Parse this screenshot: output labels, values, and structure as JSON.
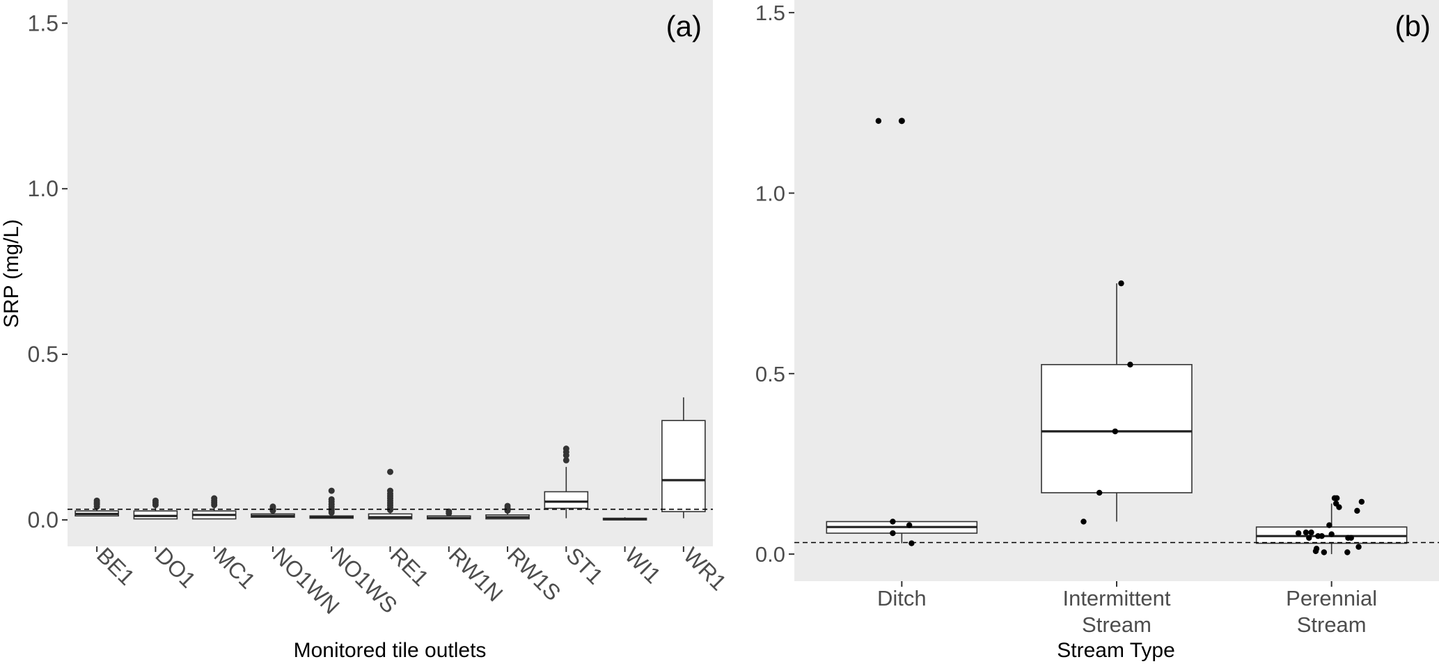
{
  "chart_data": [
    {
      "type": "box",
      "panel_label": "(a)",
      "xlabel": "Monitored tile outlets",
      "ylabel": "SRP (mg/L)",
      "ylim": [
        -0.08,
        1.57
      ],
      "yticks": [
        0.0,
        0.5,
        1.0,
        1.5
      ],
      "ytick_labels": [
        "0.0",
        "0.5",
        "1.0",
        "1.5"
      ],
      "reference_line": 0.032,
      "grid": false,
      "categories": [
        "BE1",
        "DO1",
        "MC1",
        "NO1WN",
        "NO1WS",
        "RE1",
        "RW1N",
        "RW1S",
        "ST1",
        "WI1",
        "WR1"
      ],
      "boxes": [
        {
          "min": 0.012,
          "q1": 0.012,
          "median": 0.018,
          "q3": 0.027,
          "max": 0.035,
          "outliers": [
            0.04,
            0.047,
            0.052,
            0.058
          ]
        },
        {
          "min": 0.003,
          "q1": 0.003,
          "median": 0.012,
          "q3": 0.027,
          "max": 0.038,
          "outliers": [
            0.045,
            0.052,
            0.058
          ]
        },
        {
          "min": 0.003,
          "q1": 0.003,
          "median": 0.015,
          "q3": 0.027,
          "max": 0.038,
          "outliers": [
            0.045,
            0.052,
            0.058,
            0.065
          ]
        },
        {
          "min": 0.008,
          "q1": 0.008,
          "median": 0.012,
          "q3": 0.018,
          "max": 0.025,
          "outliers": [
            0.028,
            0.035,
            0.04
          ]
        },
        {
          "min": 0.005,
          "q1": 0.005,
          "median": 0.008,
          "q3": 0.012,
          "max": 0.018,
          "outliers": [
            0.022,
            0.027,
            0.033,
            0.04,
            0.047,
            0.055,
            0.062,
            0.088
          ]
        },
        {
          "min": 0.003,
          "q1": 0.003,
          "median": 0.008,
          "q3": 0.018,
          "max": 0.028,
          "outliers": [
            0.03,
            0.037,
            0.044,
            0.051,
            0.058,
            0.065,
            0.072,
            0.079,
            0.088,
            0.145
          ]
        },
        {
          "min": 0.003,
          "q1": 0.003,
          "median": 0.006,
          "q3": 0.012,
          "max": 0.018,
          "outliers": [
            0.02,
            0.025
          ]
        },
        {
          "min": 0.003,
          "q1": 0.003,
          "median": 0.008,
          "q3": 0.015,
          "max": 0.022,
          "outliers": [
            0.028,
            0.035,
            0.042
          ]
        },
        {
          "min": 0.005,
          "q1": 0.035,
          "median": 0.055,
          "q3": 0.085,
          "max": 0.16,
          "outliers": [
            0.18,
            0.195,
            0.205,
            0.215
          ]
        },
        {
          "min": 0.0,
          "q1": 0.0,
          "median": 0.002,
          "q3": 0.005,
          "max": 0.008,
          "outliers": []
        },
        {
          "min": 0.005,
          "q1": 0.025,
          "median": 0.12,
          "q3": 0.3,
          "max": 0.37,
          "outliers": []
        }
      ]
    },
    {
      "type": "box",
      "panel_label": "(b)",
      "xlabel": "Stream Type",
      "ylabel": "",
      "ylim": [
        -0.075,
        1.535
      ],
      "yticks": [
        0.0,
        0.5,
        1.0,
        1.5
      ],
      "ytick_labels": [
        "0.0",
        "0.5",
        "1.0",
        "1.5"
      ],
      "reference_line": 0.032,
      "grid": false,
      "categories": [
        "Ditch",
        "Intermittent\nStream",
        "Perennial\nStream"
      ],
      "boxes": [
        {
          "min": 0.03,
          "q1": 0.058,
          "median": 0.075,
          "q3": 0.09,
          "max": 0.09,
          "outliers": [
            1.2,
            1.2
          ]
        },
        {
          "min": 0.09,
          "q1": 0.17,
          "median": 0.34,
          "q3": 0.525,
          "max": 0.75,
          "outliers": []
        },
        {
          "min": 0.0,
          "q1": 0.03,
          "median": 0.05,
          "q3": 0.075,
          "max": 0.14,
          "outliers": []
        }
      ],
      "points": [
        {
          "category": 0,
          "jitter": -0.31,
          "y": 1.2
        },
        {
          "category": 0,
          "jitter": 0.0,
          "y": 1.2
        },
        {
          "category": 0,
          "jitter": -0.12,
          "y": 0.09
        },
        {
          "category": 0,
          "jitter": 0.1,
          "y": 0.08
        },
        {
          "category": 0,
          "jitter": -0.12,
          "y": 0.058
        },
        {
          "category": 0,
          "jitter": 0.13,
          "y": 0.03
        },
        {
          "category": 1,
          "jitter": 0.06,
          "y": 0.75
        },
        {
          "category": 1,
          "jitter": 0.18,
          "y": 0.525
        },
        {
          "category": 1,
          "jitter": -0.02,
          "y": 0.34
        },
        {
          "category": 1,
          "jitter": -0.23,
          "y": 0.17
        },
        {
          "category": 1,
          "jitter": -0.44,
          "y": 0.09
        },
        {
          "category": 2,
          "jitter": -0.44,
          "y": 0.058
        },
        {
          "category": 2,
          "jitter": -0.34,
          "y": 0.06
        },
        {
          "category": 2,
          "jitter": -0.27,
          "y": 0.06
        },
        {
          "category": 2,
          "jitter": -0.3,
          "y": 0.045
        },
        {
          "category": 2,
          "jitter": -0.18,
          "y": 0.05
        },
        {
          "category": 2,
          "jitter": -0.13,
          "y": 0.05
        },
        {
          "category": 2,
          "jitter": -0.2,
          "y": 0.015
        },
        {
          "category": 2,
          "jitter": -0.21,
          "y": 0.008
        },
        {
          "category": 2,
          "jitter": -0.1,
          "y": 0.005
        },
        {
          "category": 2,
          "jitter": -0.03,
          "y": 0.08
        },
        {
          "category": 2,
          "jitter": 0.04,
          "y": 0.155
        },
        {
          "category": 2,
          "jitter": 0.07,
          "y": 0.155
        },
        {
          "category": 2,
          "jitter": 0.06,
          "y": 0.14
        },
        {
          "category": 2,
          "jitter": 0.1,
          "y": 0.13
        },
        {
          "category": 2,
          "jitter": 0.0,
          "y": 0.055
        },
        {
          "category": 2,
          "jitter": 0.22,
          "y": 0.045
        },
        {
          "category": 2,
          "jitter": 0.26,
          "y": 0.045
        },
        {
          "category": 2,
          "jitter": 0.21,
          "y": 0.005
        },
        {
          "category": 2,
          "jitter": 0.36,
          "y": 0.02
        },
        {
          "category": 2,
          "jitter": 0.34,
          "y": 0.12
        },
        {
          "category": 2,
          "jitter": 0.4,
          "y": 0.145
        }
      ]
    }
  ]
}
